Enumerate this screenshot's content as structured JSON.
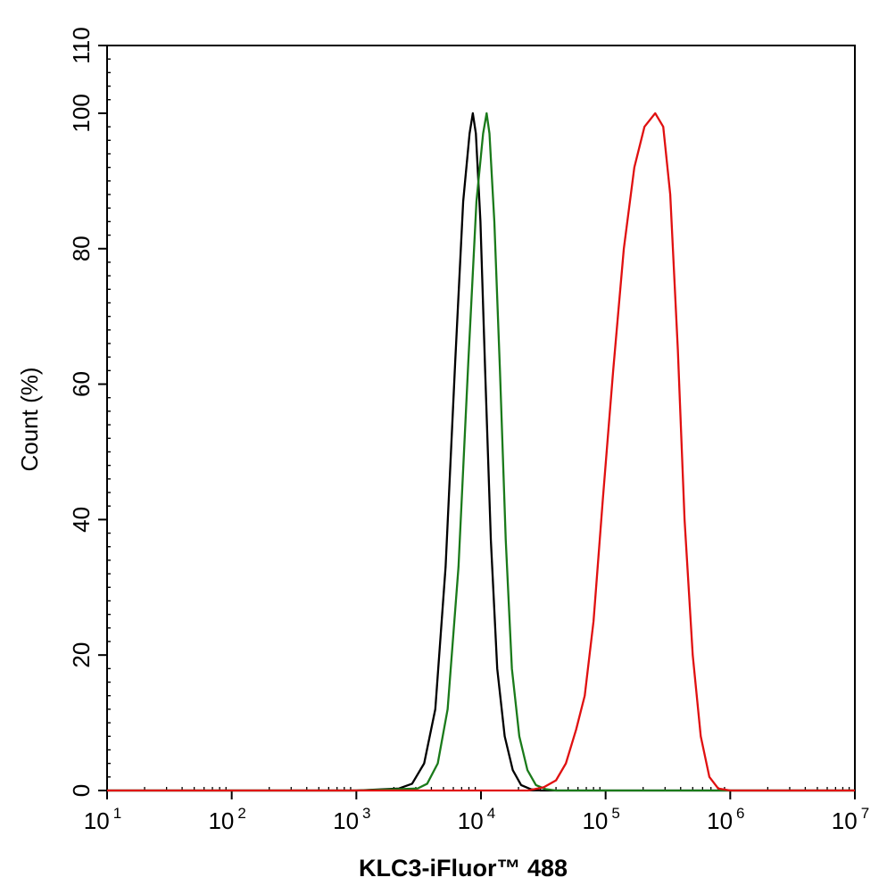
{
  "chart_data": {
    "type": "line",
    "xlabel": "KLC3-iFluor™ 488",
    "ylabel": "Count  (%)",
    "xscale": "log",
    "xlim": [
      10,
      10000000
    ],
    "ylim": [
      0,
      110
    ],
    "grid": false,
    "x_tick_labels": [
      {
        "base": "10",
        "exp": "1"
      },
      {
        "base": "10",
        "exp": "2"
      },
      {
        "base": "10",
        "exp": "3"
      },
      {
        "base": "10",
        "exp": "4"
      },
      {
        "base": "10",
        "exp": "5"
      },
      {
        "base": "10",
        "exp": "6"
      },
      {
        "base": "10",
        "exp": "7"
      }
    ],
    "y_tick_labels": [
      "0",
      "20",
      "40",
      "60",
      "80",
      "100",
      "110"
    ],
    "series": [
      {
        "color": "#000000",
        "points": [
          [
            10,
            0
          ],
          [
            1000,
            0
          ],
          [
            2200,
            0.3
          ],
          [
            2800,
            1
          ],
          [
            3500,
            4
          ],
          [
            4300,
            12
          ],
          [
            5200,
            33
          ],
          [
            6200,
            63
          ],
          [
            7200,
            87
          ],
          [
            8100,
            97
          ],
          [
            8600,
            100
          ],
          [
            9100,
            97
          ],
          [
            9900,
            84
          ],
          [
            10800,
            62
          ],
          [
            12000,
            37
          ],
          [
            13500,
            18
          ],
          [
            15500,
            8
          ],
          [
            18000,
            3
          ],
          [
            21000,
            0.8
          ],
          [
            25000,
            0.2
          ],
          [
            30000,
            0
          ],
          [
            10000000,
            0
          ]
        ]
      },
      {
        "color": "#1a7a1a",
        "points": [
          [
            10,
            0
          ],
          [
            1000,
            0
          ],
          [
            3100,
            0.3
          ],
          [
            3700,
            1
          ],
          [
            4500,
            4
          ],
          [
            5400,
            12
          ],
          [
            6600,
            33
          ],
          [
            7900,
            63
          ],
          [
            9200,
            87
          ],
          [
            10400,
            97
          ],
          [
            11100,
            100
          ],
          [
            11700,
            97
          ],
          [
            12800,
            84
          ],
          [
            14200,
            62
          ],
          [
            15800,
            37
          ],
          [
            17700,
            18
          ],
          [
            20300,
            8
          ],
          [
            23600,
            3
          ],
          [
            27600,
            0.8
          ],
          [
            33000,
            0.2
          ],
          [
            40000,
            0
          ],
          [
            10000000,
            0
          ]
        ]
      },
      {
        "color": "#e01010",
        "points": [
          [
            10,
            0
          ],
          [
            1000,
            0
          ],
          [
            24000,
            0
          ],
          [
            32000,
            0.5
          ],
          [
            40000,
            1.5
          ],
          [
            48000,
            4
          ],
          [
            58000,
            9
          ],
          [
            68000,
            14
          ],
          [
            80000,
            25
          ],
          [
            95000,
            43
          ],
          [
            115000,
            62
          ],
          [
            140000,
            80
          ],
          [
            170000,
            92
          ],
          [
            205000,
            98
          ],
          [
            250000,
            100
          ],
          [
            290000,
            98
          ],
          [
            330000,
            88
          ],
          [
            380000,
            65
          ],
          [
            430000,
            40
          ],
          [
            500000,
            20
          ],
          [
            580000,
            8
          ],
          [
            680000,
            2
          ],
          [
            800000,
            0.3
          ],
          [
            1000000,
            0
          ],
          [
            10000000,
            0
          ]
        ]
      }
    ]
  }
}
